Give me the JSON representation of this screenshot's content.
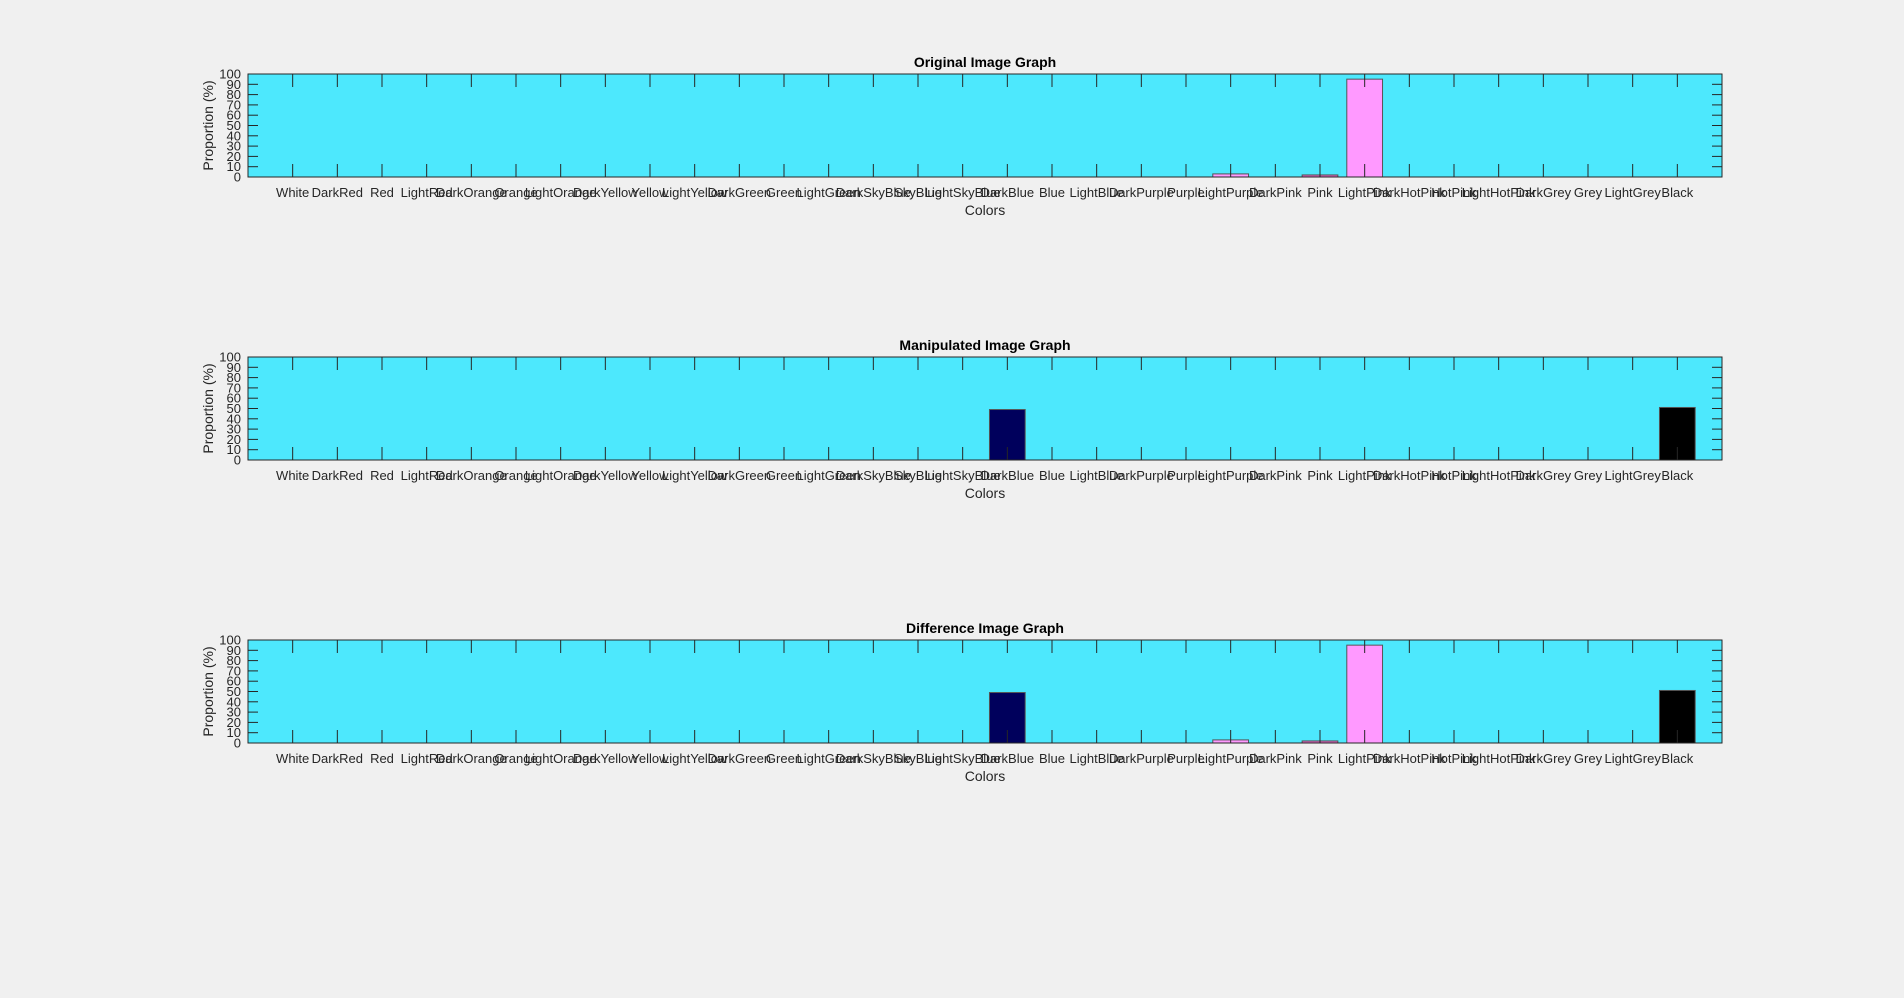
{
  "chart_data": [
    {
      "type": "bar",
      "title": "Original Image Graph",
      "xlabel": "Colors",
      "ylabel": "Proportion (%)",
      "ylim": [
        0,
        100
      ],
      "yticks": [
        "0",
        "10",
        "20",
        "30",
        "40",
        "50",
        "60",
        "70",
        "80",
        "90",
        "100"
      ],
      "grid": false,
      "categories": [
        "White",
        "DarkRed",
        "Red",
        "LightRed",
        "DarkOrange",
        "Orange",
        "LightOrange",
        "DarkYellow",
        "Yellow",
        "LightYellow",
        "DarkGreen",
        "Green",
        "LightGreen",
        "DarkSkyBlue",
        "SkyBlue",
        "LightSkyBlue",
        "DarkBlue",
        "Blue",
        "LightBlue",
        "DarkPurple",
        "Purple",
        "LightPurple",
        "DarkPink",
        "Pink",
        "LightPink",
        "DarkHotPink",
        "HotPink",
        "LightHotPink",
        "DarkGrey",
        "Grey",
        "LightGrey",
        "Black"
      ],
      "values": [
        0,
        0,
        0,
        0,
        0,
        0,
        0,
        0,
        0,
        0,
        0,
        0,
        0,
        0,
        0,
        0,
        0,
        0,
        0,
        0,
        0,
        3,
        0,
        2,
        95,
        0,
        0,
        0,
        0,
        0,
        0,
        0
      ],
      "colors": [
        "#ffffff",
        "#8b0000",
        "#ff0000",
        "#ff8080",
        "#cc5500",
        "#ffa500",
        "#ffd080",
        "#b59a00",
        "#ffff00",
        "#ffffb0",
        "#006400",
        "#00ff00",
        "#90ee90",
        "#007fa0",
        "#87ceeb",
        "#c6ecff",
        "#00005c",
        "#0000ff",
        "#add8e6",
        "#4b0082",
        "#800080",
        "#ff99ff",
        "#aa336a",
        "#e060c0",
        "#ff99ff",
        "#c71585",
        "#ff69b4",
        "#ffb6e0",
        "#404040",
        "#808080",
        "#d3d3d3",
        "#000000"
      ]
    },
    {
      "type": "bar",
      "title": "Manipulated Image Graph",
      "xlabel": "Colors",
      "ylabel": "Proportion (%)",
      "ylim": [
        0,
        100
      ],
      "yticks": [
        "0",
        "10",
        "20",
        "30",
        "40",
        "50",
        "60",
        "70",
        "80",
        "90",
        "100"
      ],
      "grid": false,
      "categories": [
        "White",
        "DarkRed",
        "Red",
        "LightRed",
        "DarkOrange",
        "Orange",
        "LightOrange",
        "DarkYellow",
        "Yellow",
        "LightYellow",
        "DarkGreen",
        "Green",
        "LightGreen",
        "DarkSkyBlue",
        "SkyBlue",
        "LightSkyBlue",
        "DarkBlue",
        "Blue",
        "LightBlue",
        "DarkPurple",
        "Purple",
        "LightPurple",
        "DarkPink",
        "Pink",
        "LightPink",
        "DarkHotPink",
        "HotPink",
        "LightHotPink",
        "DarkGrey",
        "Grey",
        "LightGrey",
        "Black"
      ],
      "values": [
        0,
        0,
        0,
        0,
        0,
        0,
        0,
        0,
        0,
        0,
        0,
        0,
        0,
        0,
        0,
        0,
        49,
        0,
        0,
        0,
        0,
        0,
        0,
        0,
        0,
        0,
        0,
        0,
        0,
        0,
        0,
        51
      ],
      "colors": [
        "#ffffff",
        "#8b0000",
        "#ff0000",
        "#ff8080",
        "#cc5500",
        "#ffa500",
        "#ffd080",
        "#b59a00",
        "#ffff00",
        "#ffffb0",
        "#006400",
        "#00ff00",
        "#90ee90",
        "#007fa0",
        "#87ceeb",
        "#c6ecff",
        "#00005c",
        "#0000ff",
        "#add8e6",
        "#4b0082",
        "#800080",
        "#ff99ff",
        "#aa336a",
        "#e060c0",
        "#ff99ff",
        "#c71585",
        "#ff69b4",
        "#ffb6e0",
        "#404040",
        "#808080",
        "#d3d3d3",
        "#000000"
      ]
    },
    {
      "type": "bar",
      "title": "Difference Image Graph",
      "xlabel": "Colors",
      "ylabel": "Proportion (%)",
      "ylim": [
        0,
        100
      ],
      "yticks": [
        "0",
        "10",
        "20",
        "30",
        "40",
        "50",
        "60",
        "70",
        "80",
        "90",
        "100"
      ],
      "grid": false,
      "categories": [
        "White",
        "DarkRed",
        "Red",
        "LightRed",
        "DarkOrange",
        "Orange",
        "LightOrange",
        "DarkYellow",
        "Yellow",
        "LightYellow",
        "DarkGreen",
        "Green",
        "LightGreen",
        "DarkSkyBlue",
        "SkyBlue",
        "LightSkyBlue",
        "DarkBlue",
        "Blue",
        "LightBlue",
        "DarkPurple",
        "Purple",
        "LightPurple",
        "DarkPink",
        "Pink",
        "LightPink",
        "DarkHotPink",
        "HotPink",
        "LightHotPink",
        "DarkGrey",
        "Grey",
        "LightGrey",
        "Black"
      ],
      "values": [
        0,
        0,
        0,
        0,
        0,
        0,
        0,
        0,
        0,
        0,
        0,
        0,
        0,
        0,
        0,
        0,
        49,
        0,
        0,
        0,
        0,
        3,
        0,
        2,
        95,
        0,
        0,
        0,
        0,
        0,
        0,
        51
      ],
      "colors": [
        "#ffffff",
        "#8b0000",
        "#ff0000",
        "#ff8080",
        "#cc5500",
        "#ffa500",
        "#ffd080",
        "#b59a00",
        "#ffff00",
        "#ffffb0",
        "#006400",
        "#00ff00",
        "#90ee90",
        "#007fa0",
        "#87ceeb",
        "#c6ecff",
        "#00005c",
        "#0000ff",
        "#add8e6",
        "#4b0082",
        "#800080",
        "#ff99ff",
        "#aa336a",
        "#e060c0",
        "#ff99ff",
        "#c71585",
        "#ff69b4",
        "#ffb6e0",
        "#404040",
        "#808080",
        "#d3d3d3",
        "#000000"
      ]
    }
  ],
  "style": {
    "figure_background": "#f0f0f0",
    "axes_background": "#4de8fd",
    "axis_color": "#262626",
    "text_color": "#262626",
    "bar_edge_color": "#555555"
  }
}
